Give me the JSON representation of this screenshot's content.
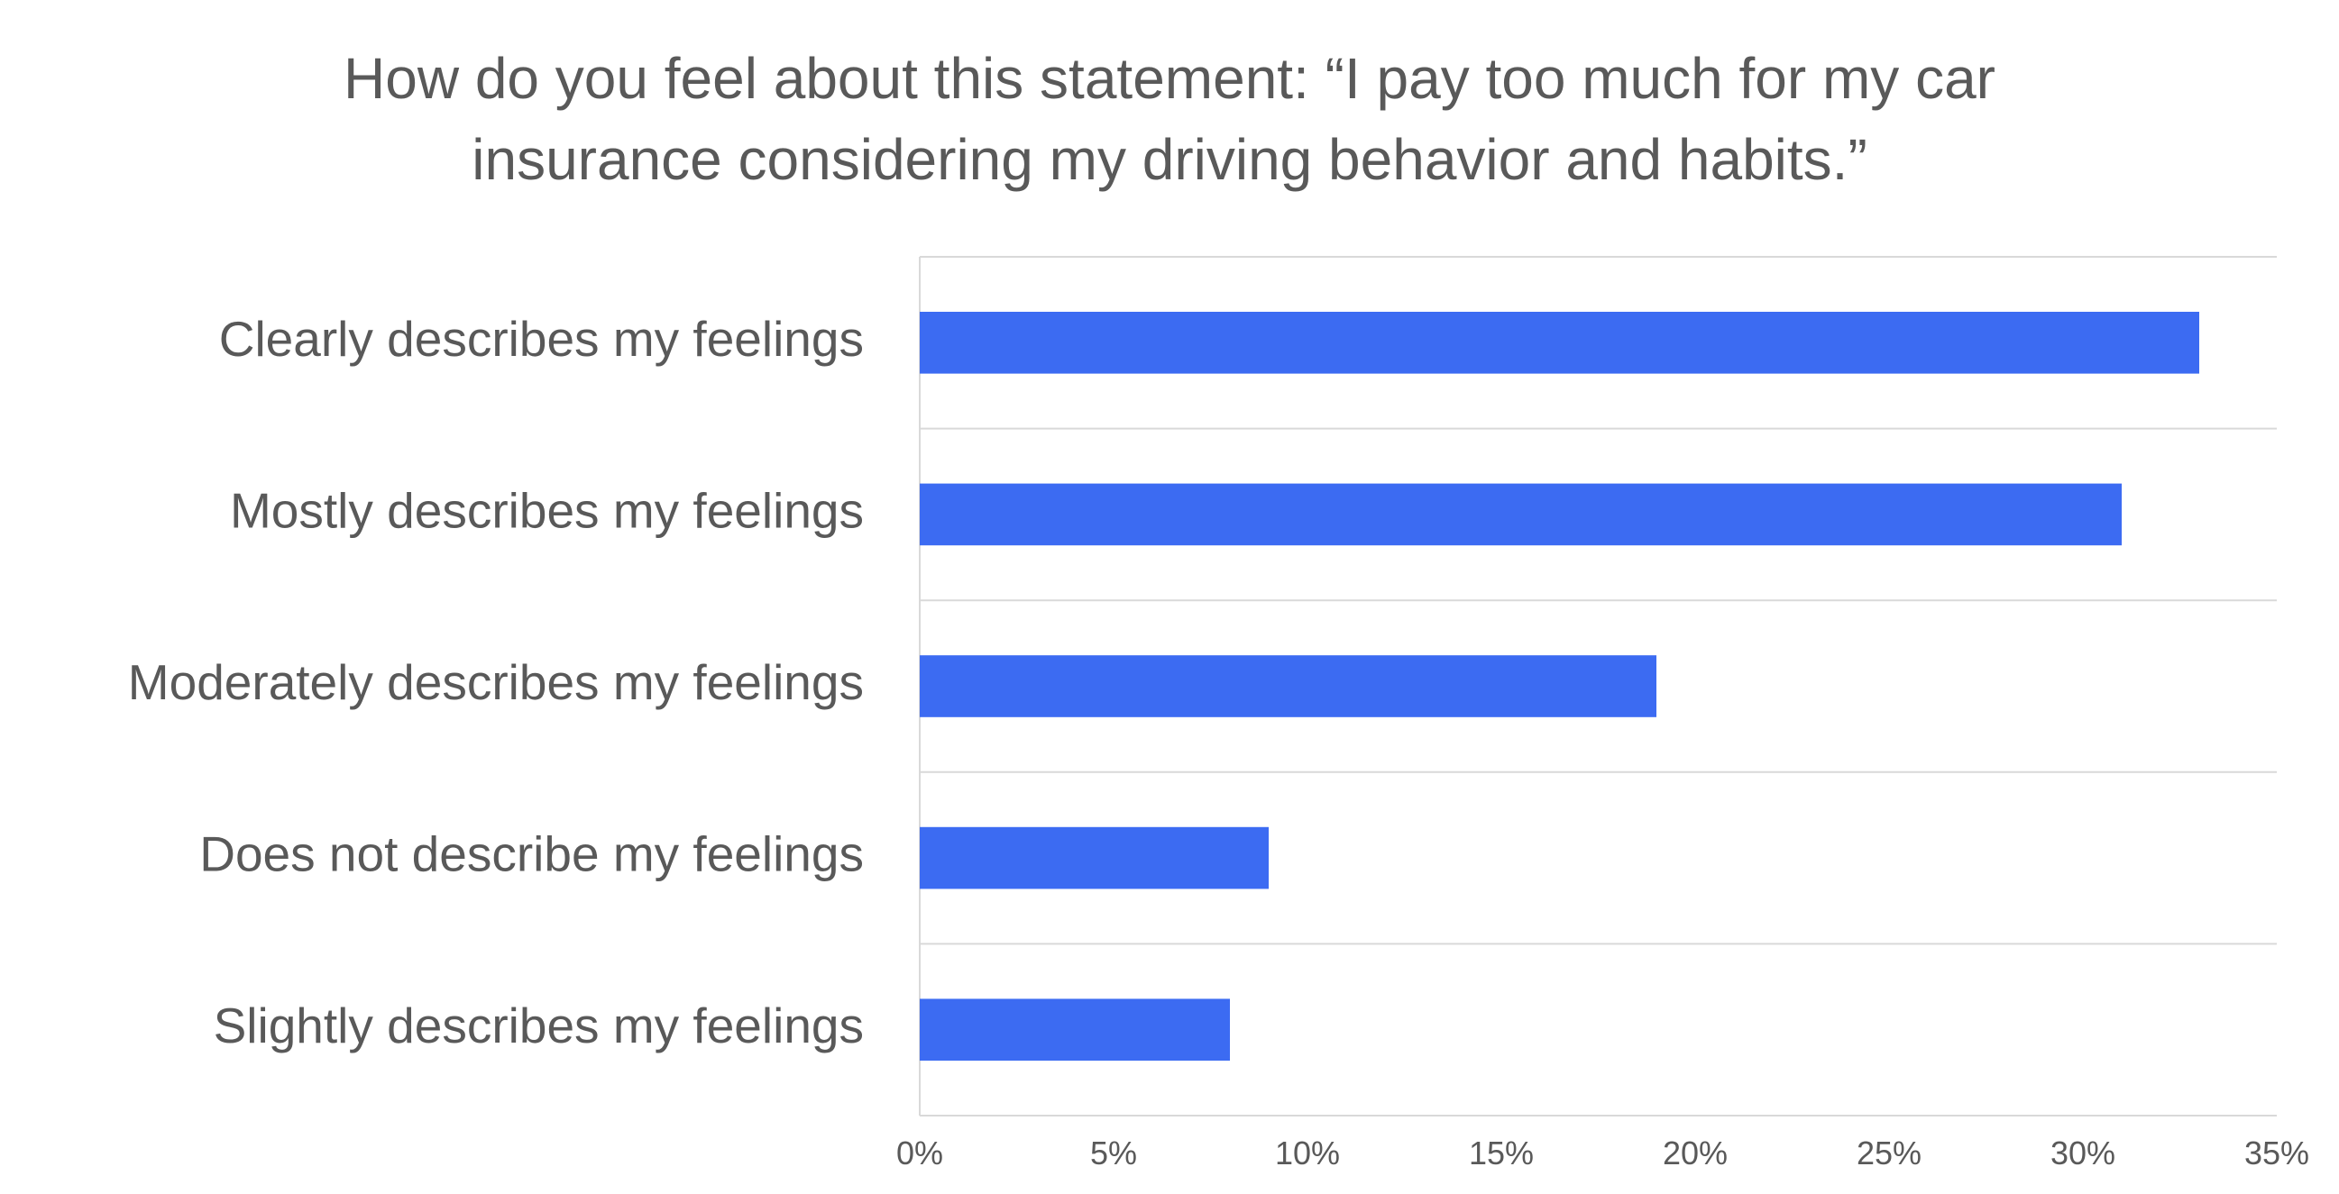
{
  "chart_data": {
    "type": "bar",
    "orientation": "horizontal",
    "title": [
      "How do you feel about this statement: “I pay too much for my car",
      "insurance considering my driving behavior and habits.”"
    ],
    "categories": [
      "Clearly describes my feelings",
      "Mostly describes my feelings",
      "Moderately describes my feelings",
      "Does not describe my feelings",
      "Slightly describes my feelings"
    ],
    "values": [
      33,
      31,
      19,
      9,
      8
    ],
    "xlim": [
      0,
      35
    ],
    "xticks": [
      0,
      5,
      10,
      15,
      20,
      25,
      30,
      35
    ],
    "xtick_labels": [
      "0%",
      "5%",
      "10%",
      "15%",
      "20%",
      "25%",
      "30%",
      "35%"
    ],
    "value_unit": "%",
    "bar_color": "#3C6BF2",
    "grid": true,
    "grid_color": "#D9D9D9",
    "text_color": "#595959",
    "legend": "none"
  }
}
